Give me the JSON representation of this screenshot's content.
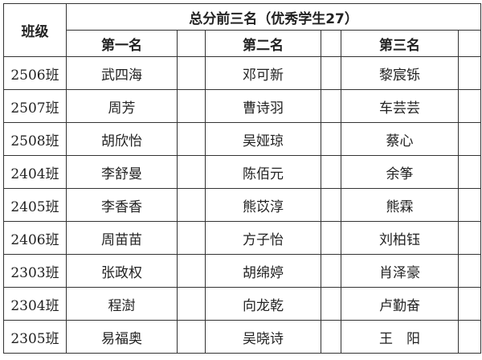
{
  "header": {
    "class_label": "班级",
    "group_title": "总分前三名（优秀学生27）",
    "first": "第一名",
    "second": "第二名",
    "third": "第三名"
  },
  "rows": [
    {
      "class": "2506班",
      "first": "武四海",
      "second": "邓可新",
      "third": "黎宸铄"
    },
    {
      "class": "2507班",
      "first": "周芳",
      "second": "曹诗羽",
      "third": "车芸芸"
    },
    {
      "class": "2508班",
      "first": "胡欣怡",
      "second": "吴娅琼",
      "third": "蔡心"
    },
    {
      "class": "2404班",
      "first": "李舒曼",
      "second": "陈佰元",
      "third": "余筝"
    },
    {
      "class": "2405班",
      "first": "李香香",
      "second": "熊苡淳",
      "third": "熊霖"
    },
    {
      "class": "2406班",
      "first": "周苗苗",
      "second": "方子怡",
      "third": "刘柏钰"
    },
    {
      "class": "2303班",
      "first": "张政权",
      "second": "胡绵婷",
      "third": "肖泽豪"
    },
    {
      "class": "2304班",
      "first": "程澍",
      "second": "向龙乾",
      "third": "卢勤奋"
    },
    {
      "class": "2305班",
      "first": "易福奥",
      "second": "吴晓诗",
      "third": "王　阳"
    }
  ]
}
